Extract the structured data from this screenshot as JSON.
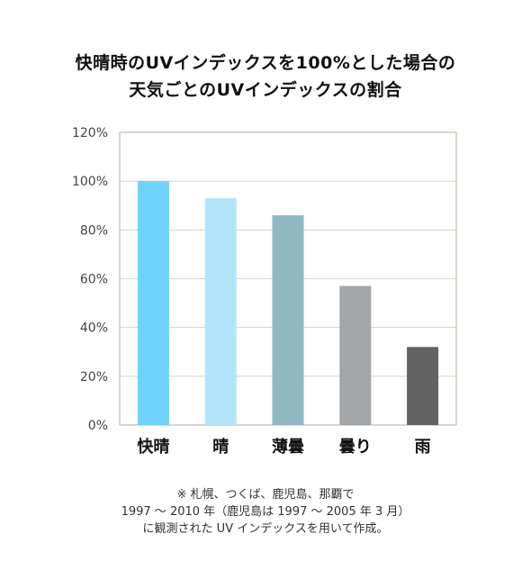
{
  "title_lines": [
    "快晴時のUVインデックスを100%とした場合の",
    "天気ごとのUVインデックスの割合"
  ],
  "note_lines": [
    "※ 札幌、つくば、鹿児島、那覇で",
    "1997 ～ 2010 年（鹿児島は 1997 ～ 2005 年 3 月）",
    "に観測された UV インデックスを用いて作成。"
  ],
  "chart_data": {
    "type": "bar",
    "categories": [
      "快晴",
      "晴",
      "薄曇",
      "曇り",
      "雨"
    ],
    "values": [
      100,
      93,
      86,
      57,
      32
    ],
    "bar_colors": [
      "#6dd3fb",
      "#b3e5fa",
      "#90b9c4",
      "#a3a6a9",
      "#636363"
    ],
    "ylim": [
      0,
      120
    ],
    "yticks": [
      0,
      20,
      40,
      60,
      80,
      100,
      120
    ],
    "ytick_labels": [
      "0%",
      "20%",
      "40%",
      "60%",
      "80%",
      "100%",
      "120%"
    ],
    "grid": true,
    "grid_color": "#d8d3c6",
    "axis_color": "#cfcabb"
  }
}
